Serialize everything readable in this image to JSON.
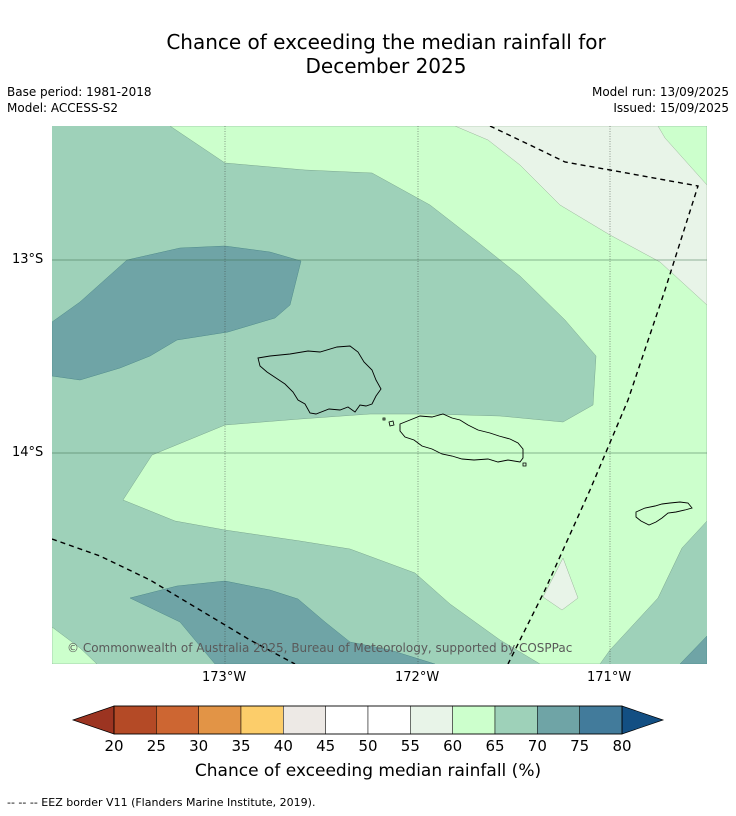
{
  "title": {
    "line1": "Chance of exceeding the median rainfall for",
    "line2": "December 2025"
  },
  "meta": {
    "base_period": "Base period: 1981-2018",
    "model": "Model: ACCESS-S2",
    "model_run": "Model run: 13/09/2025",
    "issued": "Issued: 15/09/2025"
  },
  "map": {
    "lat_labels": [
      "13°S",
      "14°S"
    ],
    "lon_labels": [
      "173°W",
      "172°W",
      "171°W"
    ],
    "copyright": "© Commonwealth of Australia 2025, Bureau of Meteorology, supported by COSPPac",
    "colors": {
      "c45_55": "#ffffff",
      "c55_60": "#e8f4e8",
      "c60_65": "#ccffcc",
      "c65_70": "#9ed1b9",
      "c70_75": "#6fa4a6"
    }
  },
  "colorbar": {
    "ticks": [
      "20",
      "25",
      "30",
      "35",
      "40",
      "45",
      "50",
      "55",
      "60",
      "65",
      "70",
      "75",
      "80"
    ],
    "colors": [
      "#9c3421",
      "#b44a26",
      "#cd6632",
      "#e29446",
      "#fccd6a",
      "#ede9e5",
      "#ffffff",
      "#ffffff",
      "#e8f4e8",
      "#ccffcc",
      "#9ed1b9",
      "#6fa4a6",
      "#427b9b",
      "#134f83"
    ],
    "label": "Chance of exceeding median rainfall (%)"
  },
  "footer": "--  --  -- EEZ border V11 (Flanders Marine Institute, 2019)."
}
